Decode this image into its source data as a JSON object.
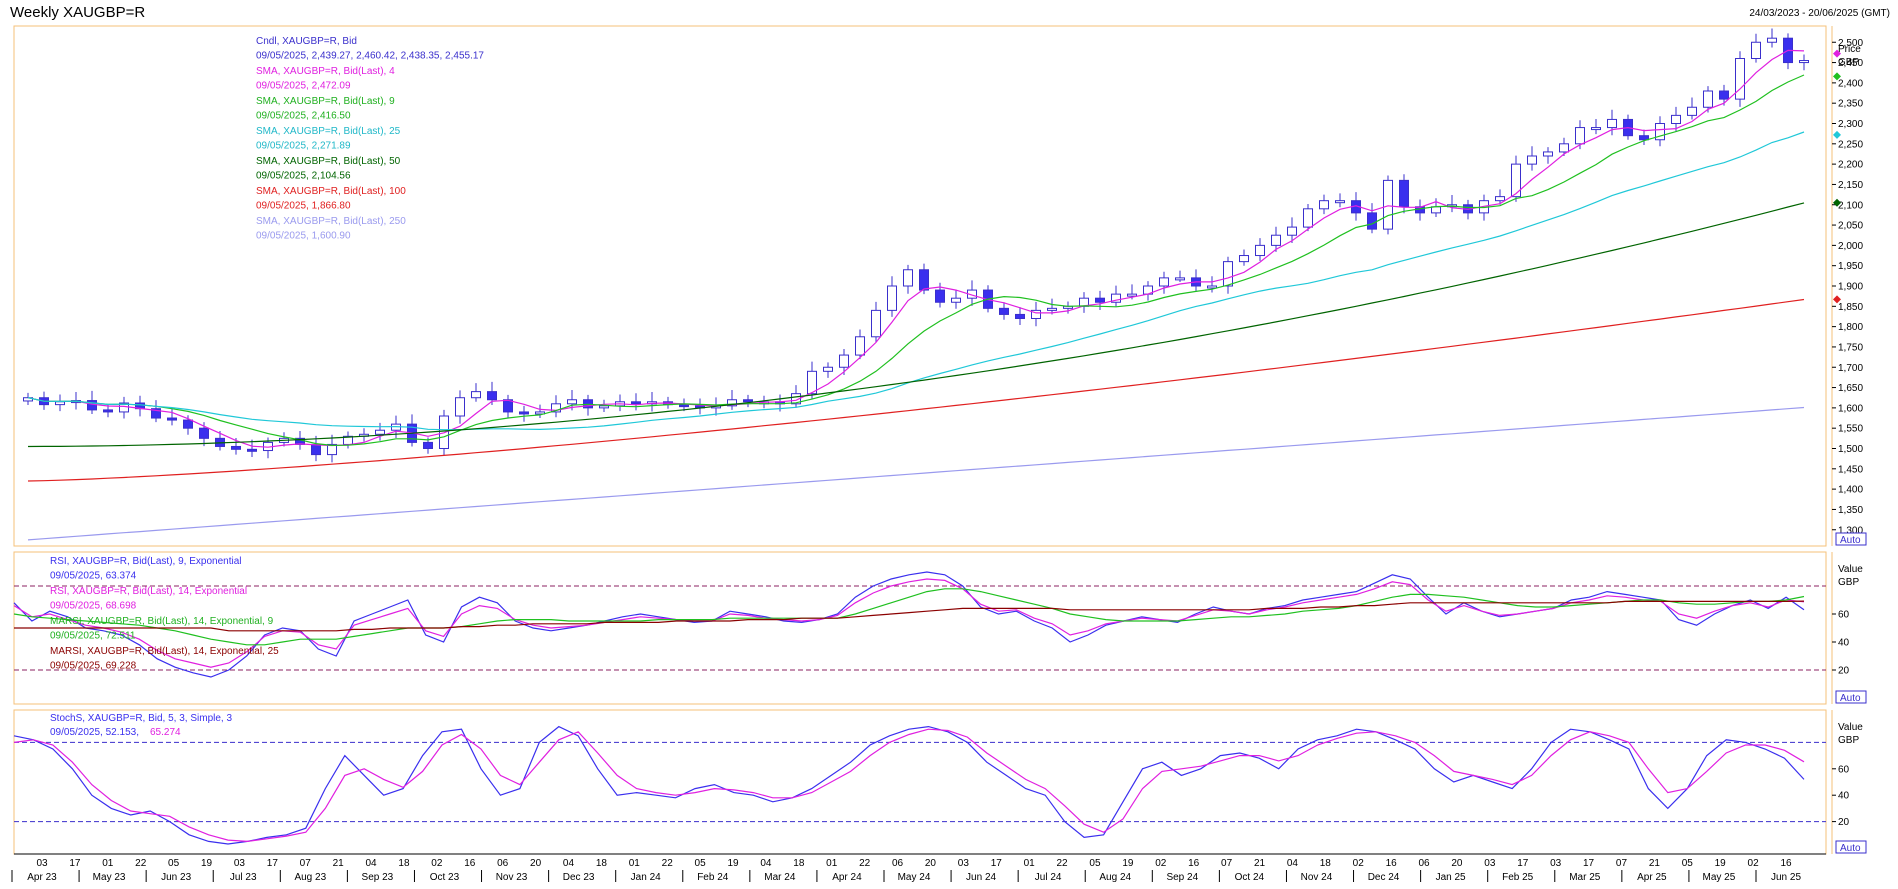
{
  "window": {
    "title": "Weekly XAUGBP=R",
    "date_range": "24/03/2023 - 20/06/2025 (GMT)"
  },
  "colors": {
    "candle_up_border": "#3a2fcc",
    "candle_down_fill": "#3a2fee",
    "sma4": "#e020e0",
    "sma9": "#20c020",
    "sma25": "#20c8d8",
    "sma50": "#006400",
    "sma100": "#e02020",
    "sma250": "#9a9aee",
    "rsi9": "#3a2fee",
    "rsi14": "#e020e0",
    "marsi9": "#20c020",
    "marsi25": "#8b0000",
    "stoch_k": "#3a2fee",
    "stoch_d": "#e020e0",
    "panel_border": "#f5c07a",
    "guide_line": "#8b2060"
  },
  "price_panel": {
    "legend": [
      {
        "label": "Cndl, XAUGBP=R, Bid",
        "value": "09/05/2025, 2,439.27, 2,460.42, 2,438.35, 2,455.17",
        "color": "#3a2fcc"
      },
      {
        "label": "SMA, XAUGBP=R, Bid(Last),  4",
        "value": "09/05/2025, 2,472.09",
        "color": "#e020e0"
      },
      {
        "label": "SMA, XAUGBP=R, Bid(Last),  9",
        "value": "09/05/2025, 2,416.50",
        "color": "#20b020"
      },
      {
        "label": "SMA, XAUGBP=R, Bid(Last),  25",
        "value": "09/05/2025, 2,271.89",
        "color": "#20b8c8"
      },
      {
        "label": "SMA, XAUGBP=R, Bid(Last),  50",
        "value": "09/05/2025, 2,104.56",
        "color": "#006400"
      },
      {
        "label": "SMA, XAUGBP=R, Bid(Last),  100",
        "value": "09/05/2025, 1,866.80",
        "color": "#e02020"
      },
      {
        "label": "SMA, XAUGBP=R, Bid(Last),  250",
        "value": "09/05/2025, 1,600.90",
        "color": "#9a9aee"
      }
    ],
    "axis_title": "Price",
    "axis_unit": "GBP",
    "auto_label": "Auto",
    "y_ticks": [
      "1,300",
      "1,350",
      "1,400",
      "1,450",
      "1,500",
      "1,550",
      "1,600",
      "1,650",
      "1,700",
      "1,750",
      "1,800",
      "1,850",
      "1,900",
      "1,950",
      "2,000",
      "2,050",
      "2,100",
      "2,150",
      "2,200",
      "2,250",
      "2,300",
      "2,350",
      "2,400",
      "2,450",
      "2,500"
    ]
  },
  "rsi_panel": {
    "legend": [
      {
        "label": "RSI, XAUGBP=R, Bid(Last),  9, Exponential",
        "value": "09/05/2025, 63.374",
        "color": "#3a2fee"
      },
      {
        "label": "RSI, XAUGBP=R, Bid(Last),  14, Exponential",
        "value": "09/05/2025, 68.698",
        "color": "#e020e0"
      },
      {
        "label": "MARSI, XAUGBP=R, Bid(Last),  14, Exponential, 9",
        "value": "09/05/2025, 72.511",
        "color": "#20b020"
      },
      {
        "label": "MARSI, XAUGBP=R, Bid(Last),  14, Exponential, 25",
        "value": "09/05/2025, 69.228",
        "color": "#8b0000"
      }
    ],
    "axis_title": "Value",
    "axis_unit": "GBP",
    "auto_label": "Auto",
    "y_ticks": [
      "20",
      "40",
      "60"
    ]
  },
  "stoch_panel": {
    "legend": [
      {
        "label": "StochS, XAUGBP=R, Bid,  5, 3, Simple, 3",
        "value_k": "09/05/2025, 52.153,",
        "value_d": "65.274"
      }
    ],
    "axis_title": "Value",
    "axis_unit": "GBP",
    "auto_label": "Auto",
    "y_ticks": [
      "20",
      "40",
      "60"
    ]
  },
  "x_axis": {
    "day_ticks": [
      "03",
      "17",
      "01",
      "22",
      "05",
      "19",
      "03",
      "17",
      "07",
      "21",
      "04",
      "18",
      "02",
      "16",
      "06",
      "20",
      "04",
      "18",
      "01",
      "22",
      "05",
      "19",
      "04",
      "18",
      "01",
      "22",
      "06",
      "20",
      "03",
      "17",
      "01",
      "22",
      "05",
      "19",
      "02",
      "16",
      "07",
      "21",
      "04",
      "18",
      "02",
      "16",
      "06",
      "20",
      "03",
      "17",
      "03",
      "17",
      "07",
      "21",
      "05",
      "19",
      "02",
      "16"
    ],
    "month_ticks": [
      "Apr 23",
      "May 23",
      "Jun 23",
      "Jul 23",
      "Aug 23",
      "Sep 23",
      "Oct 23",
      "Nov 23",
      "Dec 23",
      "Jan 24",
      "Feb 24",
      "Mar 24",
      "Apr 24",
      "May 24",
      "Jun 24",
      "Jul 24",
      "Aug 24",
      "Sep 24",
      "Oct 24",
      "Nov 24",
      "Dec 24",
      "Jan 25",
      "Feb 25",
      "Mar 25",
      "Apr 25",
      "May 25",
      "Jun 25"
    ]
  },
  "chart_data": [
    {
      "type": "candlestick",
      "title": "Weekly XAUGBP=R",
      "ylabel": "Price GBP",
      "ylim": [
        1260,
        2540
      ],
      "series_close": [
        1625,
        1608,
        1615,
        1618,
        1595,
        1590,
        1612,
        1598,
        1575,
        1570,
        1550,
        1525,
        1505,
        1498,
        1495,
        1515,
        1525,
        1510,
        1485,
        1510,
        1530,
        1535,
        1545,
        1560,
        1515,
        1500,
        1580,
        1625,
        1640,
        1620,
        1590,
        1585,
        1590,
        1610,
        1620,
        1600,
        1605,
        1615,
        1610,
        1615,
        1608,
        1605,
        1600,
        1605,
        1620,
        1615,
        1615,
        1610,
        1635,
        1690,
        1700,
        1730,
        1775,
        1840,
        1900,
        1940,
        1890,
        1860,
        1870,
        1890,
        1845,
        1830,
        1820,
        1840,
        1845,
        1850,
        1870,
        1860,
        1880,
        1880,
        1900,
        1920,
        1920,
        1900,
        1900,
        1960,
        1975,
        2000,
        2025,
        2045,
        2090,
        2110,
        2110,
        2080,
        2040,
        2160,
        2095,
        2080,
        2095,
        2100,
        2080,
        2110,
        2120,
        2200,
        2220,
        2230,
        2250,
        2290,
        2290,
        2310,
        2270,
        2260,
        2300,
        2320,
        2340,
        2380,
        2360,
        2460,
        2500,
        2510,
        2450,
        2455
      ],
      "sma": {
        "4": 2472.09,
        "9": 2416.5,
        "25": 2271.89,
        "50": 2104.56,
        "100": 1866.8,
        "250": 1600.9
      }
    },
    {
      "type": "line",
      "title": "RSI",
      "ylim": [
        0,
        100
      ],
      "series": [
        {
          "name": "RSI 9",
          "values": [
            68,
            55,
            62,
            58,
            50,
            48,
            45,
            38,
            28,
            22,
            18,
            15,
            20,
            30,
            45,
            50,
            48,
            35,
            30,
            55,
            60,
            65,
            70,
            45,
            40,
            65,
            72,
            68,
            55,
            50,
            48,
            50,
            52,
            55,
            58,
            60,
            58,
            56,
            54,
            55,
            62,
            60,
            58,
            55,
            54,
            56,
            60,
            72,
            80,
            85,
            88,
            90,
            88,
            80,
            65,
            60,
            62,
            55,
            50,
            40,
            45,
            52,
            55,
            58,
            56,
            54,
            60,
            65,
            62,
            60,
            64,
            66,
            70,
            72,
            74,
            76,
            82,
            88,
            85,
            72,
            60,
            68,
            62,
            58,
            60,
            62,
            64,
            70,
            72,
            76,
            74,
            72,
            70,
            56,
            52,
            60,
            66,
            70,
            64,
            72,
            63
          ]
        },
        {
          "name": "RSI 14",
          "values": [
            66,
            58,
            60,
            56,
            52,
            50,
            47,
            42,
            34,
            28,
            25,
            22,
            25,
            33,
            44,
            48,
            47,
            38,
            35,
            52,
            56,
            60,
            64,
            48,
            44,
            60,
            66,
            64,
            56,
            52,
            50,
            51,
            52,
            54,
            56,
            58,
            57,
            56,
            55,
            55,
            60,
            59,
            57,
            56,
            55,
            56,
            59,
            68,
            75,
            80,
            83,
            85,
            84,
            78,
            67,
            62,
            63,
            57,
            53,
            45,
            48,
            53,
            55,
            57,
            56,
            55,
            59,
            63,
            62,
            60,
            63,
            65,
            68,
            70,
            72,
            74,
            78,
            83,
            81,
            70,
            62,
            66,
            62,
            59,
            60,
            62,
            64,
            68,
            70,
            73,
            72,
            70,
            69,
            60,
            57,
            62,
            66,
            68,
            65,
            70,
            68.698
          ]
        },
        {
          "name": "MARSI 9",
          "values": [
            60,
            58,
            57,
            56,
            55,
            54,
            53,
            52,
            50,
            48,
            45,
            42,
            40,
            38,
            38,
            40,
            42,
            42,
            42,
            44,
            46,
            48,
            50,
            50,
            50,
            51,
            53,
            55,
            56,
            56,
            56,
            55,
            55,
            55,
            55,
            55,
            56,
            56,
            56,
            56,
            57,
            57,
            57,
            57,
            57,
            57,
            57,
            60,
            64,
            68,
            72,
            76,
            78,
            78,
            76,
            73,
            70,
            67,
            64,
            60,
            58,
            56,
            55,
            55,
            55,
            55,
            56,
            57,
            58,
            58,
            59,
            60,
            62,
            63,
            64,
            66,
            69,
            72,
            74,
            74,
            73,
            72,
            70,
            68,
            66,
            65,
            65,
            66,
            67,
            68,
            69,
            70,
            70,
            68,
            67,
            67,
            68,
            69,
            69,
            70,
            72.511
          ]
        },
        {
          "name": "MARSI 25",
          "values": [
            50,
            50,
            50,
            50,
            50,
            50,
            50,
            50,
            50,
            50,
            50,
            50,
            48,
            48,
            48,
            48,
            48,
            48,
            48,
            49,
            49,
            50,
            50,
            50,
            50,
            51,
            51,
            52,
            52,
            53,
            53,
            53,
            53,
            54,
            54,
            54,
            54,
            55,
            55,
            55,
            55,
            56,
            56,
            56,
            57,
            57,
            57,
            58,
            59,
            60,
            61,
            62,
            63,
            64,
            64,
            64,
            64,
            64,
            64,
            63,
            63,
            63,
            63,
            63,
            63,
            63,
            63,
            63,
            63,
            63,
            64,
            64,
            64,
            65,
            65,
            66,
            66,
            67,
            68,
            68,
            68,
            68,
            68,
            68,
            68,
            68,
            68,
            68,
            68,
            68,
            69,
            69,
            69,
            69,
            69,
            69,
            69,
            69,
            69,
            69,
            69.228
          ]
        }
      ],
      "guides": [
        20,
        80
      ]
    },
    {
      "type": "line",
      "title": "StochS",
      "ylim": [
        0,
        100
      ],
      "series": [
        {
          "name": "%K",
          "values": [
            85,
            82,
            75,
            60,
            40,
            30,
            25,
            28,
            20,
            10,
            5,
            3,
            5,
            8,
            10,
            15,
            45,
            70,
            55,
            40,
            45,
            70,
            88,
            90,
            60,
            40,
            45,
            80,
            92,
            85,
            60,
            40,
            42,
            40,
            38,
            45,
            48,
            42,
            40,
            35,
            38,
            45,
            55,
            65,
            78,
            85,
            90,
            92,
            88,
            80,
            65,
            55,
            45,
            40,
            20,
            8,
            10,
            35,
            60,
            65,
            55,
            60,
            70,
            72,
            68,
            60,
            75,
            82,
            85,
            90,
            88,
            82,
            75,
            60,
            50,
            55,
            50,
            45,
            60,
            80,
            90,
            88,
            82,
            75,
            45,
            30,
            45,
            70,
            82,
            80,
            75,
            68,
            52
          ]
        },
        {
          "name": "%D",
          "values": [
            80,
            82,
            78,
            65,
            48,
            36,
            28,
            26,
            24,
            16,
            10,
            6,
            5,
            7,
            9,
            12,
            30,
            55,
            60,
            52,
            46,
            58,
            78,
            86,
            75,
            55,
            48,
            65,
            82,
            88,
            72,
            55,
            45,
            42,
            40,
            42,
            45,
            44,
            42,
            38,
            38,
            42,
            50,
            58,
            70,
            80,
            86,
            90,
            89,
            84,
            72,
            62,
            52,
            45,
            32,
            18,
            12,
            22,
            45,
            58,
            60,
            62,
            66,
            70,
            70,
            66,
            70,
            78,
            83,
            87,
            88,
            85,
            80,
            70,
            58,
            55,
            52,
            48,
            55,
            70,
            82,
            88,
            85,
            80,
            60,
            42,
            45,
            58,
            72,
            78,
            78,
            74,
            65.274
          ]
        }
      ],
      "guides": [
        20,
        80
      ]
    }
  ]
}
